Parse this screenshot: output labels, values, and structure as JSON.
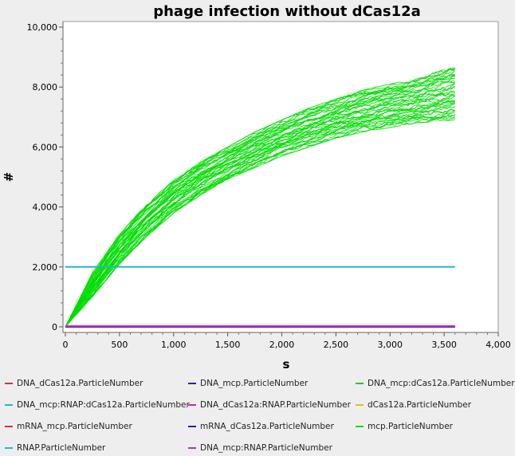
{
  "chart_data": {
    "type": "line",
    "title": "phage infection without dCas12a",
    "xlabel": "s",
    "ylabel": "#",
    "xlim": [
      0,
      4000
    ],
    "ylim": [
      0,
      10000
    ],
    "x_ticks": [
      "0",
      "500",
      "1,000",
      "1,500",
      "2,000",
      "2,500",
      "3,000",
      "3,500",
      "4,000"
    ],
    "y_ticks": [
      "0",
      "2,000",
      "4,000",
      "6,000",
      "8,000",
      "10,000"
    ],
    "grid": false,
    "legend_position": "bottom",
    "x_range_data": [
      0,
      3600
    ],
    "series": [
      {
        "name": "DNA_dCas12a.ParticleNumber",
        "color": "#e03030",
        "x": [
          0,
          3600
        ],
        "values": [
          0,
          0
        ]
      },
      {
        "name": "DNA_mcp.ParticleNumber",
        "color": "#2020c0",
        "x": [
          0,
          3600
        ],
        "values": [
          0,
          0
        ]
      },
      {
        "name": "DNA_mcp:dCas12a.ParticleNumber",
        "color": "#22cc22",
        "x": [
          0,
          3600
        ],
        "values": [
          0,
          0
        ]
      },
      {
        "name": "DNA_mcp:RNAP:dCas12a.ParticleNumber",
        "color": "#20b8d0",
        "x": [
          0,
          3600
        ],
        "values": [
          0,
          0
        ]
      },
      {
        "name": "DNA_dCas12a:RNAP.ParticleNumber",
        "color": "#d020d0",
        "x": [
          0,
          3600
        ],
        "values": [
          0,
          0
        ]
      },
      {
        "name": "dCas12a.ParticleNumber",
        "color": "#e0c020",
        "x": [
          0,
          3600
        ],
        "values": [
          0,
          0
        ]
      },
      {
        "name": "mRNA_mcp.ParticleNumber",
        "color": "#e03030",
        "x": [
          0,
          3600
        ],
        "values": [
          25,
          25
        ]
      },
      {
        "name": "mRNA_dCas12a.ParticleNumber",
        "color": "#2020c0",
        "x": [
          0,
          3600
        ],
        "values": [
          0,
          0
        ]
      },
      {
        "name": "mcp.ParticleNumber",
        "color": "#00dd00",
        "x": [
          0,
          250,
          500,
          750,
          1000,
          1250,
          1500,
          1750,
          2000,
          2250,
          2500,
          2750,
          3000,
          3250,
          3600
        ],
        "values": [
          0,
          1400,
          2600,
          3500,
          4300,
          4900,
          5400,
          5800,
          6200,
          6500,
          6800,
          7000,
          7200,
          7350,
          7500
        ],
        "band_low": [
          0,
          1000,
          2100,
          3000,
          3800,
          4400,
          4900,
          5300,
          5700,
          6000,
          6300,
          6500,
          6650,
          6800,
          6900
        ],
        "band_high": [
          0,
          1800,
          3100,
          4100,
          4900,
          5500,
          6000,
          6500,
          6900,
          7300,
          7600,
          7900,
          8100,
          8300,
          8700
        ]
      },
      {
        "name": "RNAP.ParticleNumber",
        "color": "#20b8d0",
        "x": [
          0,
          3600
        ],
        "values": [
          2000,
          2000
        ]
      },
      {
        "name": "DNA_mcp:RNAP.ParticleNumber",
        "color": "#d020d0",
        "x": [
          0,
          3600
        ],
        "values": [
          20,
          20
        ]
      }
    ]
  }
}
